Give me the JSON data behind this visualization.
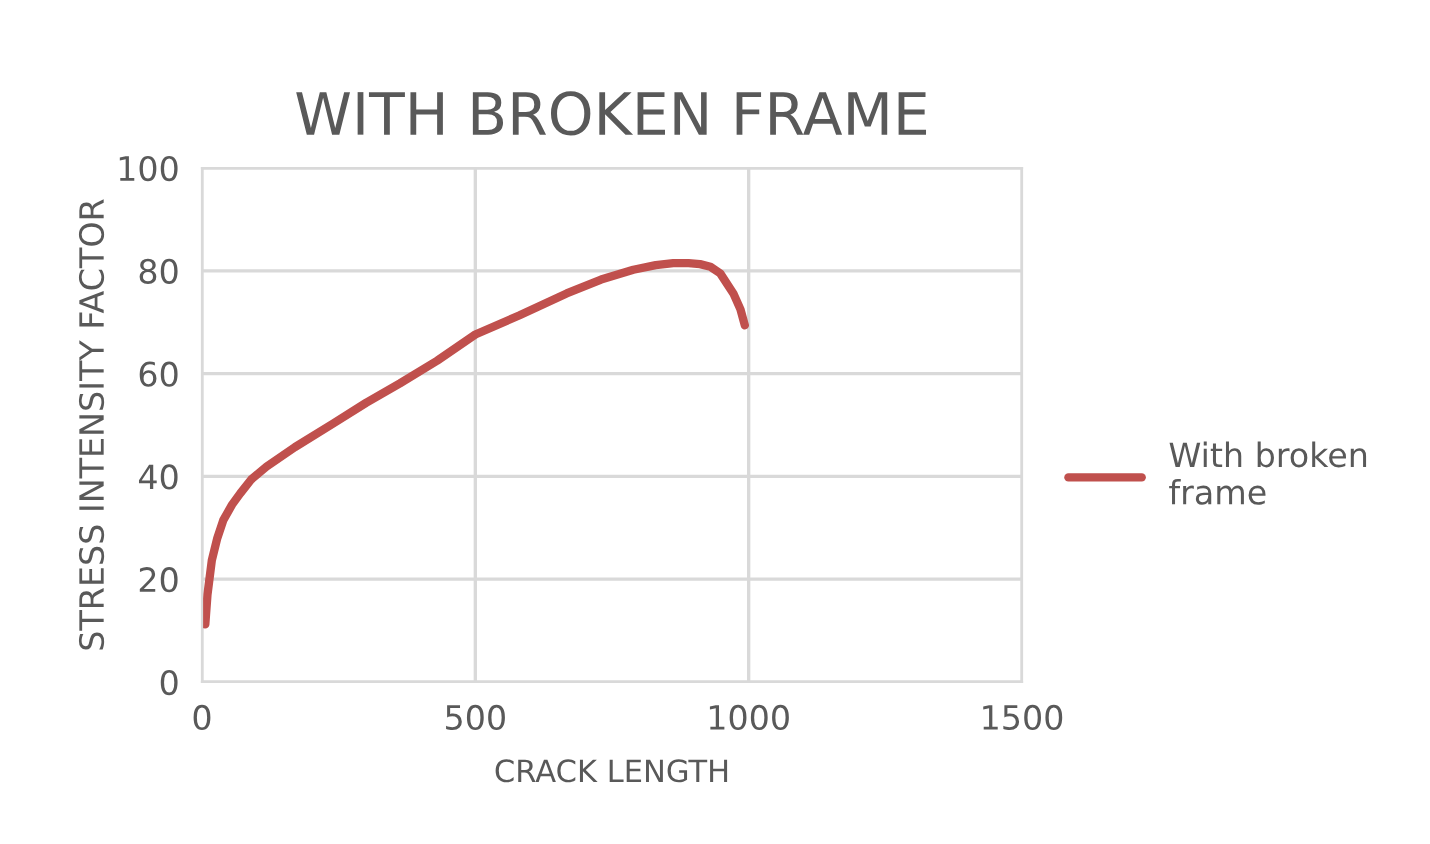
{
  "chart_data": {
    "type": "line",
    "title": "WITH BROKEN FRAME",
    "xlabel": "CRACK LENGTH",
    "ylabel": "STRESS INTENSITY FACTOR",
    "series": [
      {
        "name": "With broken frame",
        "color": "#c0504d",
        "x": [
          6,
          10,
          18,
          28,
          39,
          55,
          70,
          90,
          118,
          170,
          240,
          300,
          362,
          430,
          500,
          580,
          667,
          730,
          789,
          830,
          862,
          890,
          911,
          930,
          948,
          972,
          985,
          993
        ],
        "values": [
          11.2,
          17,
          23.7,
          28,
          31.5,
          34.5,
          36.7,
          39.4,
          41.9,
          45.7,
          50.3,
          54.3,
          58.1,
          62.5,
          67.6,
          71.3,
          75.6,
          78.3,
          80.2,
          81.1,
          81.5,
          81.5,
          81.3,
          80.8,
          79.5,
          75.6,
          72.5,
          69.4
        ]
      }
    ],
    "xlim": [
      0,
      1500
    ],
    "xticks": [
      0,
      500,
      1000,
      1500
    ],
    "ylim": [
      0,
      100
    ],
    "yticks": [
      0,
      20,
      40,
      60,
      80,
      100
    ],
    "grid": true,
    "legend": "right",
    "marker": "none",
    "line_style": "solid"
  }
}
